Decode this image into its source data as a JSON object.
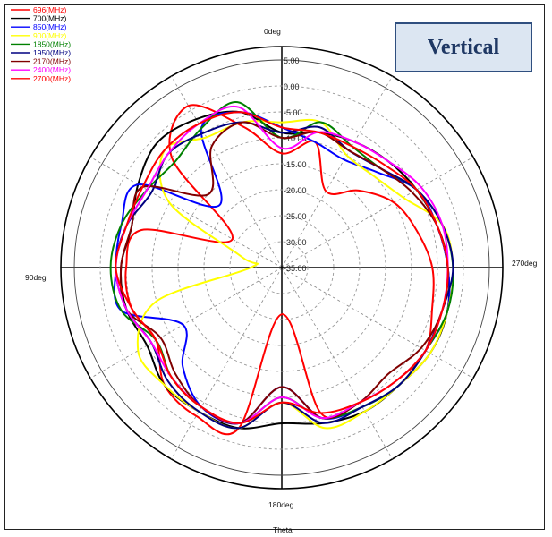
{
  "title_badge": "Vertical",
  "axis_title": "Theta",
  "chart_data": {
    "type": "polar-line",
    "r_ticks": [
      5,
      0,
      -5,
      -10,
      -15,
      -20,
      -25,
      -30,
      -35
    ],
    "r_tick_labels": [
      "5.00",
      "0.00",
      "-5.00",
      "-10.00",
      "-15.00",
      "-20.00",
      "-25.00",
      "-30.00",
      "-35.00"
    ],
    "rlim": [
      -35,
      5
    ],
    "angle_labels": [
      {
        "deg": 0,
        "label": "0deg"
      },
      {
        "deg": 90,
        "label": "90deg"
      },
      {
        "deg": 180,
        "label": "180deg"
      },
      {
        "deg": 270,
        "label": "270deg"
      }
    ],
    "angle_direction": "counter-clockwise from top",
    "angles_deg": [
      0,
      15,
      30,
      45,
      60,
      75,
      90,
      105,
      120,
      135,
      150,
      165,
      180,
      195,
      210,
      225,
      240,
      255,
      270,
      285,
      300,
      315,
      330,
      345
    ],
    "grid": true,
    "legend_position": "top-left",
    "series": [
      {
        "name": "696(MHz)",
        "color": "#ff0000",
        "values": [
          -13,
          -7,
          1,
          -5,
          -24,
          -7,
          -5,
          -5,
          -7,
          -3,
          -2,
          -3,
          -26,
          -6,
          -5,
          -4,
          -3,
          -5,
          -6,
          -8,
          -10,
          -14,
          -18,
          -10
        ]
      },
      {
        "name": "700(MHz)",
        "color": "#000000",
        "values": [
          -9,
          -4,
          -2,
          -1,
          -3,
          -5,
          -4,
          -4,
          -5,
          -3,
          -3,
          -3,
          -5,
          -4,
          -3,
          -3,
          -2,
          -2,
          -3,
          -4,
          -5,
          -6,
          -7,
          -8
        ]
      },
      {
        "name": "850(MHz)",
        "color": "#0000ff",
        "values": [
          -8,
          -4,
          -4,
          -18,
          -3,
          -3,
          -3,
          -3,
          -13,
          -8,
          -4,
          -4,
          -12,
          -5,
          -4,
          -3,
          -3,
          -2,
          -3,
          -4,
          -5,
          -9,
          -11,
          -10
        ]
      },
      {
        "name": "900(MHz)",
        "color": "#ffff00",
        "values": [
          -7,
          -6,
          -6,
          -3,
          -10,
          -27,
          -29,
          -10,
          -3,
          -3,
          -3,
          -3,
          -9,
          -3,
          -3,
          -3,
          -2,
          -2,
          -2,
          -3,
          -8,
          -10,
          -10,
          -6
        ]
      },
      {
        "name": "1850(MHz)",
        "color": "#008000",
        "values": [
          -10,
          -2,
          -4,
          -6,
          -5,
          -3,
          -2,
          -3,
          -7,
          -5,
          -4,
          -4,
          -10,
          -5,
          -4,
          -3,
          -3,
          -2,
          -2,
          -3,
          -5,
          -8,
          -8,
          -6
        ]
      },
      {
        "name": "1950(MHz)",
        "color": "#000080",
        "values": [
          -9,
          -6,
          -5,
          -4,
          -6,
          -4,
          -3,
          -4,
          -6,
          -4,
          -3,
          -3,
          -9,
          -4,
          -4,
          -3,
          -3,
          -3,
          -2,
          -3,
          -5,
          -8,
          -9,
          -7
        ]
      },
      {
        "name": "2170(MHz)",
        "color": "#800000",
        "values": [
          -10,
          -6,
          -8,
          -15,
          -4,
          -5,
          -4,
          -4,
          -8,
          -6,
          -4,
          -4,
          -12,
          -5,
          -5,
          -6,
          -4,
          -3,
          -3,
          -4,
          -6,
          -8,
          -9,
          -8
        ]
      },
      {
        "name": "2400(MHz)",
        "color": "#ff00ff",
        "values": [
          -12,
          -3,
          -3,
          -4,
          -5,
          -4,
          -3,
          -4,
          -6,
          -5,
          -4,
          -4,
          -10,
          -5,
          -5,
          -4,
          -3,
          -3,
          -3,
          -3,
          -4,
          -6,
          -7,
          -8
        ]
      },
      {
        "name": "2700(MHz)",
        "color": "#ff0000",
        "values": [
          -8,
          -4,
          -3,
          -3,
          -4,
          -4,
          -3,
          -5,
          -7,
          -5,
          -4,
          -4,
          -9,
          -6,
          -5,
          -4,
          -3,
          -3,
          -3,
          -4,
          -5,
          -7,
          -8,
          -8
        ]
      }
    ]
  }
}
